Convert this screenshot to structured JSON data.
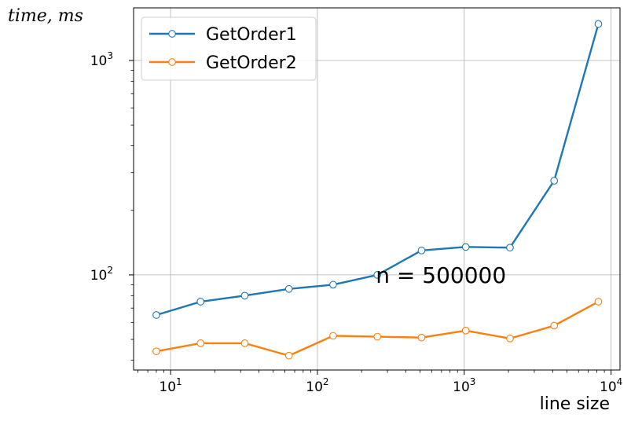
{
  "chart_data": {
    "type": "line",
    "title": "",
    "xlabel": "line size",
    "ylabel": "time, ms",
    "xscale": "log",
    "yscale": "log",
    "xlim": [
      5.6,
      11500
    ],
    "ylim": [
      36,
      1760
    ],
    "grid": true,
    "legend_position": "top-left",
    "annotation": "n = 500000",
    "x": [
      8,
      16,
      32,
      64,
      128,
      256,
      512,
      1024,
      2048,
      4096,
      8192
    ],
    "series": [
      {
        "name": "GetOrder1",
        "color": "#1f77b4",
        "values": [
          65,
          75,
          80,
          86,
          90,
          100,
          130,
          135,
          134,
          275,
          1480
        ]
      },
      {
        "name": "GetOrder2",
        "color": "#ff7f0e",
        "values": [
          44,
          48,
          48,
          42,
          52,
          51.5,
          51,
          55,
          50.5,
          58,
          75
        ]
      }
    ],
    "x_ticks": [
      {
        "base": "10",
        "exp": "1"
      },
      {
        "base": "10",
        "exp": "2"
      },
      {
        "base": "10",
        "exp": "3"
      },
      {
        "base": "10",
        "exp": "4"
      }
    ],
    "y_ticks": [
      {
        "base": "10",
        "exp": "2"
      },
      {
        "base": "10",
        "exp": "3"
      }
    ]
  }
}
